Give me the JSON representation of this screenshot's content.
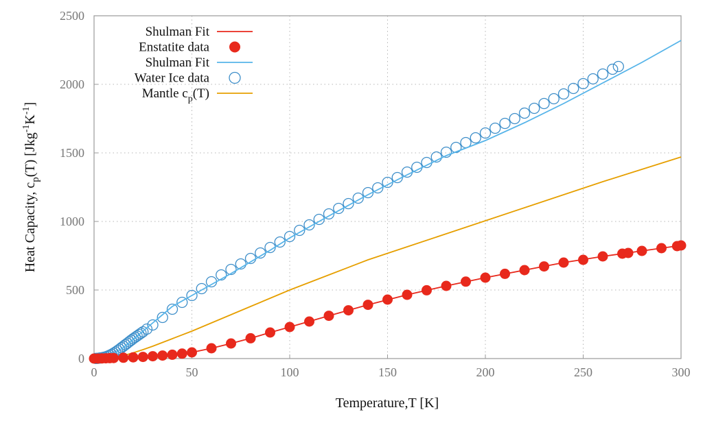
{
  "chart_data": {
    "type": "line",
    "xlabel": "Temperature,T [K]",
    "ylabel": {
      "pre": "Heat Capacity, c",
      "sub1": "p",
      "mid": "(T) [Jkg",
      "sup1": "-1",
      "mid2": "K",
      "sup2": "-1",
      "post": "]"
    },
    "xlim": [
      0,
      300
    ],
    "ylim": [
      0,
      2500
    ],
    "xticks": [
      0,
      50,
      100,
      150,
      200,
      250,
      300
    ],
    "yticks": [
      0,
      500,
      1000,
      1500,
      2000,
      2500
    ],
    "grid": true,
    "legend_position": "top-left",
    "series": [
      {
        "name": "Shulman Fit",
        "kind": "line",
        "color": "#e8291c",
        "x": [
          0,
          5,
          10,
          15,
          20,
          25,
          30,
          40,
          50,
          60,
          70,
          80,
          90,
          100,
          120,
          140,
          160,
          180,
          200,
          220,
          240,
          260,
          280,
          300
        ],
        "y": [
          0,
          2,
          5,
          8,
          11,
          14,
          18,
          28,
          45,
          75,
          110,
          148,
          190,
          230,
          312,
          392,
          465,
          530,
          590,
          645,
          700,
          745,
          785,
          825
        ]
      },
      {
        "name": "Enstatite data",
        "kind": "filled-circles",
        "color": "#e8291c",
        "x": [
          0,
          2,
          4,
          6,
          8,
          10,
          15,
          20,
          25,
          30,
          35,
          40,
          45,
          50,
          60,
          70,
          80,
          90,
          100,
          110,
          120,
          130,
          140,
          150,
          160,
          170,
          180,
          190,
          200,
          210,
          220,
          230,
          240,
          250,
          260,
          270,
          273,
          280,
          290,
          298,
          300
        ],
        "y": [
          0,
          0,
          1,
          2,
          3,
          4,
          6,
          9,
          12,
          17,
          22,
          28,
          36,
          45,
          75,
          110,
          148,
          190,
          230,
          270,
          312,
          352,
          392,
          430,
          465,
          498,
          530,
          561,
          590,
          618,
          645,
          672,
          700,
          720,
          745,
          765,
          770,
          785,
          805,
          820,
          825
        ]
      },
      {
        "name": "Shulman Fit",
        "kind": "line",
        "color": "#56b4e9",
        "x": [
          0,
          3,
          6,
          9,
          12,
          15,
          18,
          21,
          25,
          30,
          35,
          40,
          50,
          60,
          70,
          80,
          90,
          100,
          120,
          140,
          160,
          180,
          200,
          220,
          240,
          260,
          280,
          300
        ],
        "y": [
          0,
          3,
          10,
          25,
          50,
          80,
          115,
          150,
          200,
          260,
          320,
          380,
          460,
          540,
          620,
          705,
          790,
          880,
          1040,
          1195,
          1340,
          1480,
          1590,
          1720,
          1860,
          2010,
          2160,
          2320
        ]
      },
      {
        "name": "Water Ice data",
        "kind": "open-circles",
        "color": "#3d8ec9",
        "x": [
          1,
          2,
          3,
          4,
          5,
          6,
          7,
          8,
          9,
          10,
          11,
          12,
          13,
          14,
          15,
          16,
          17,
          18,
          19,
          20,
          21,
          22,
          23,
          24,
          25,
          27,
          30,
          35,
          40,
          45,
          50,
          55,
          60,
          65,
          70,
          75,
          80,
          85,
          90,
          95,
          100,
          105,
          110,
          115,
          120,
          125,
          130,
          135,
          140,
          145,
          150,
          155,
          160,
          165,
          170,
          175,
          180,
          185,
          190,
          195,
          200,
          205,
          210,
          215,
          220,
          225,
          230,
          235,
          240,
          245,
          250,
          255,
          260,
          265,
          268
        ],
        "y": [
          1,
          2,
          4,
          6,
          9,
          13,
          18,
          24,
          31,
          39,
          48,
          58,
          68,
          79,
          90,
          101,
          112,
          123,
          134,
          145,
          155,
          165,
          175,
          185,
          195,
          215,
          245,
          300,
          360,
          410,
          460,
          510,
          560,
          610,
          650,
          690,
          730,
          770,
          810,
          850,
          890,
          935,
          975,
          1015,
          1055,
          1095,
          1130,
          1170,
          1210,
          1245,
          1285,
          1320,
          1360,
          1395,
          1430,
          1470,
          1505,
          1540,
          1575,
          1610,
          1645,
          1680,
          1715,
          1750,
          1790,
          1825,
          1860,
          1895,
          1930,
          1970,
          2005,
          2040,
          2075,
          2110,
          2130
        ]
      },
      {
        "name": "Mantle c_p(T)",
        "label": {
          "pre": "Mantle c",
          "sub": "p",
          "post": "(T)"
        },
        "kind": "line",
        "color": "#e69f00",
        "x": [
          0,
          5,
          10,
          15,
          20,
          25,
          30,
          40,
          50,
          60,
          70,
          80,
          90,
          100,
          120,
          140,
          160,
          180,
          200,
          220,
          240,
          260,
          280,
          300
        ],
        "y": [
          0,
          2,
          8,
          22,
          42,
          65,
          90,
          145,
          200,
          260,
          320,
          380,
          440,
          500,
          610,
          720,
          815,
          910,
          1005,
          1100,
          1195,
          1290,
          1380,
          1470
        ]
      }
    ]
  }
}
